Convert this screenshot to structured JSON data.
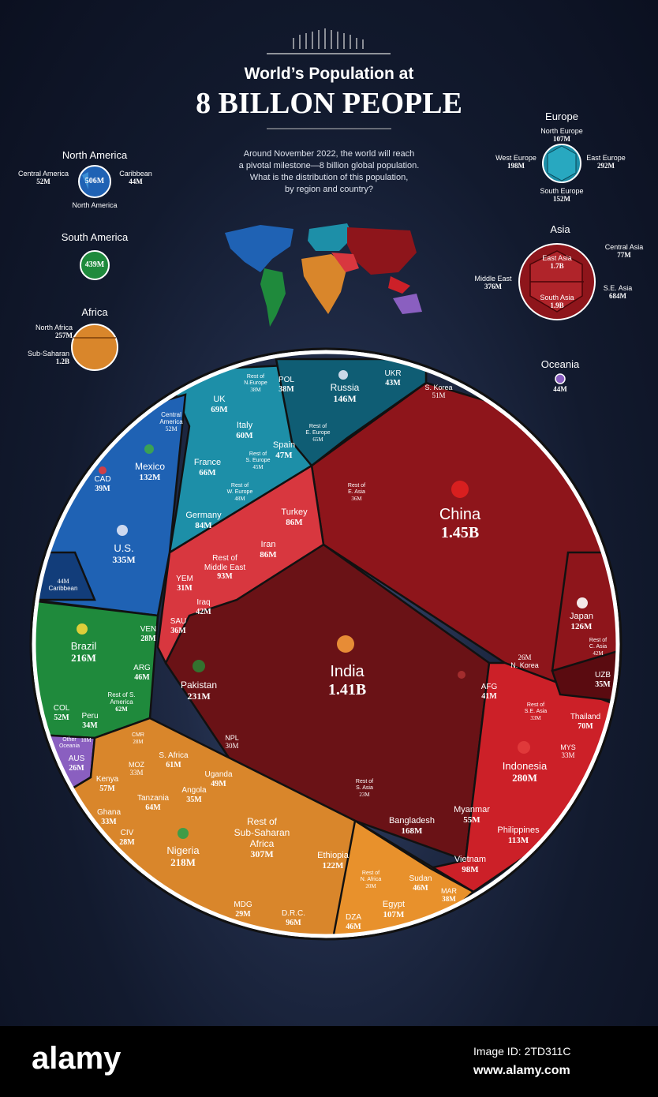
{
  "header": {
    "title_line1": "World’s Population at",
    "title_line2": "8 BILLON PEOPLE",
    "intro_line1": "Around November 2022, the world will reach",
    "intro_line2": "a pivotal milestone—8 billion global population.",
    "intro_line3": "What is the distribution of this population,",
    "intro_line4": "by region and country?"
  },
  "colors": {
    "north_america": "#1f62b4",
    "south_america": "#1f8a3c",
    "africa": "#d9862b",
    "europe": "#1d8fa8",
    "asia_dark": "#6a0f14",
    "asia": "#8e151b",
    "middle_east": "#d8373f",
    "se_asia": "#cc2028",
    "oceania": "#8a5fc0"
  },
  "regions": {
    "north_america": {
      "title": "North America",
      "total": "506M",
      "central": "Central America",
      "central_val": "52M",
      "caribbean": "Caribbean",
      "caribbean_val": "44M",
      "na": "North America"
    },
    "south_america": {
      "title": "South America",
      "total": "439M"
    },
    "africa": {
      "title": "Africa",
      "north": "North Africa",
      "north_val": "257M",
      "sub": "Sub-Saharan",
      "sub_val": "1.2B"
    },
    "europe": {
      "title": "Europe",
      "north": "North Europe",
      "north_val": "107M",
      "west": "West Europe",
      "west_val": "198M",
      "east": "East Europe",
      "east_val": "292M",
      "south": "South  Europe",
      "south_val": "152M"
    },
    "asia": {
      "title": "Asia",
      "east": "East Asia",
      "east_val": "1.7B",
      "central": "Central Asia",
      "central_val": "77M",
      "middle": "Middle East",
      "middle_val": "376M",
      "se": "S.E. Asia",
      "se_val": "684M",
      "south": "South Asia",
      "south_val": "1.9B"
    },
    "oceania": {
      "title": "Oceania",
      "total": "44M"
    }
  },
  "chart_data": {
    "type": "voronoi-treemap",
    "title": "World’s Population at 8 BILLON PEOPLE",
    "cells": [
      {
        "name": "China",
        "value": "1.45B"
      },
      {
        "name": "India",
        "value": "1.41B"
      },
      {
        "name": "U.S.",
        "value": "335M"
      },
      {
        "name": "Indonesia",
        "value": "280M"
      },
      {
        "name": "Pakistan",
        "value": "231M"
      },
      {
        "name": "Nigeria",
        "value": "218M"
      },
      {
        "name": "Brazil",
        "value": "216M"
      },
      {
        "name": "Bangladesh",
        "value": "168M"
      },
      {
        "name": "Russia",
        "value": "146M"
      },
      {
        "name": "Mexico",
        "value": "132M"
      },
      {
        "name": "Japan",
        "value": "126M"
      },
      {
        "name": "Ethiopia",
        "value": "122M"
      },
      {
        "name": "Philippines",
        "value": "113M"
      },
      {
        "name": "Egypt",
        "value": "107M"
      },
      {
        "name": "Vietnam",
        "value": "98M"
      },
      {
        "name": "D.R.C.",
        "value": "96M"
      },
      {
        "name": "Rest of Middle East",
        "value": "93M"
      },
      {
        "name": "Turkey",
        "value": "86M"
      },
      {
        "name": "Iran",
        "value": "86M"
      },
      {
        "name": "Germany",
        "value": "84M"
      },
      {
        "name": "Thailand",
        "value": "70M"
      },
      {
        "name": "UK",
        "value": "69M"
      },
      {
        "name": "France",
        "value": "66M"
      },
      {
        "name": "Rest of E. Europe",
        "value": "65M"
      },
      {
        "name": "Tanzania",
        "value": "64M"
      },
      {
        "name": "Rest of S. America",
        "value": "62M"
      },
      {
        "name": "S. Africa",
        "value": "61M"
      },
      {
        "name": "Italy",
        "value": "60M"
      },
      {
        "name": "Kenya",
        "value": "57M"
      },
      {
        "name": "Myanmar",
        "value": "55M"
      },
      {
        "name": "S. Korea",
        "value": "51M"
      },
      {
        "name": "COL",
        "value": "52M"
      },
      {
        "name": "Central America",
        "value": "52M"
      },
      {
        "name": "Uganda",
        "value": "49M"
      },
      {
        "name": "Rest of W. Europe",
        "value": "48M"
      },
      {
        "name": "Spain",
        "value": "47M"
      },
      {
        "name": "ARG",
        "value": "46M"
      },
      {
        "name": "Sudan",
        "value": "46M"
      },
      {
        "name": "DZA",
        "value": "46M"
      },
      {
        "name": "Rest of S. Europe",
        "value": "45M"
      },
      {
        "name": "Caribbean",
        "value": "44M"
      },
      {
        "name": "UKR",
        "value": "43M"
      },
      {
        "name": "Iraq",
        "value": "42M"
      },
      {
        "name": "Rest of C. Asia",
        "value": "42M"
      },
      {
        "name": "AFG",
        "value": "41M"
      },
      {
        "name": "CAD",
        "value": "39M"
      },
      {
        "name": "POL",
        "value": "38M"
      },
      {
        "name": "MAR",
        "value": "38M"
      },
      {
        "name": "Rest of N. Europe",
        "value": "38M"
      },
      {
        "name": "SAU",
        "value": "36M"
      },
      {
        "name": "UZB",
        "value": "35M"
      },
      {
        "name": "Angola",
        "value": "35M"
      },
      {
        "name": "Peru",
        "value": "34M"
      },
      {
        "name": "Rest of E. Asia",
        "value": "36M"
      },
      {
        "name": "MOZ",
        "value": "33M"
      },
      {
        "name": "Ghana",
        "value": "33M"
      },
      {
        "name": "Rest of S.E. Asia",
        "value": "33M"
      },
      {
        "name": "MYS",
        "value": "33M"
      },
      {
        "name": "YEM",
        "value": "31M"
      },
      {
        "name": "NPL",
        "value": "30M"
      },
      {
        "name": "MDG",
        "value": "29M"
      },
      {
        "name": "CMR",
        "value": "28M"
      },
      {
        "name": "CIV",
        "value": "28M"
      },
      {
        "name": "VEN",
        "value": "28M"
      },
      {
        "name": "N. Korea",
        "value": "26M"
      },
      {
        "name": "AUS",
        "value": "26M"
      },
      {
        "name": "Rest of S. Asia",
        "value": "23M"
      },
      {
        "name": "Rest of N. Africa",
        "value": "20M"
      },
      {
        "name": "Other Oceania",
        "value": "18M"
      },
      {
        "name": "Rest of Sub-Saharan Africa",
        "value": "307M"
      }
    ]
  },
  "labels": {
    "china": "China",
    "china_v": "1.45B",
    "india": "India",
    "india_v": "1.41B",
    "us": "U.S.",
    "us_v": "335M",
    "mexico": "Mexico",
    "mexico_v": "132M",
    "cad": "CAD",
    "cad_v": "39M",
    "central_am": "Central",
    "central_am2": "America",
    "central_am_v": "52M",
    "caribbean": "Caribbean",
    "caribbean_v": "44M",
    "uk": "UK",
    "uk_v": "69M",
    "rest_neu1": "Rest of",
    "rest_neu2": "N.Europe",
    "rest_neu_v": "38M",
    "pol": "POL",
    "pol_v": "38M",
    "russia": "Russia",
    "russia_v": "146M",
    "ukr": "UKR",
    "ukr_v": "43M",
    "skorea": "S. Korea",
    "skorea_v": "51M",
    "italy": "Italy",
    "italy_v": "60M",
    "spain": "Spain",
    "spain_v": "47M",
    "rest_eeu1": "Rest of",
    "rest_eeu2": "E. Europe",
    "rest_eeu_v": "65M",
    "rest_seu1": "Rest of",
    "rest_seu2": "S. Europe",
    "rest_seu_v": "45M",
    "france": "France",
    "france_v": "66M",
    "rest_weu1": "Rest of",
    "rest_weu2": "W. Europe",
    "rest_weu_v": "48M",
    "germany": "Germany",
    "germany_v": "84M",
    "rest_easia1": "Rest of",
    "rest_easia2": "E. Asia",
    "rest_easia_v": "36M",
    "turkey": "Turkey",
    "turkey_v": "86M",
    "iran": "Iran",
    "iran_v": "86M",
    "rest_me1": "Rest of",
    "rest_me2": "Middle East",
    "rest_me_v": "93M",
    "yem": "YEM",
    "yem_v": "31M",
    "iraq": "Iraq",
    "iraq_v": "42M",
    "sau": "SAU",
    "sau_v": "36M",
    "japan": "Japan",
    "japan_v": "126M",
    "rest_casia1": "Rest of",
    "rest_casia2": "C. Asia",
    "rest_casia_v": "42M",
    "nkorea": "N. Korea",
    "nkorea_v": "26M",
    "uzb": "UZB",
    "uzb_v": "35M",
    "afg": "AFG",
    "afg_v": "41M",
    "rest_seasia1": "Rest of",
    "rest_seasia2": "S.E. Asia",
    "rest_seasia_v": "33M",
    "thailand": "Thailand",
    "thailand_v": "70M",
    "mys": "MYS",
    "mys_v": "33M",
    "indonesia": "Indonesia",
    "indonesia_v": "280M",
    "myanmar": "Myanmar",
    "myanmar_v": "55M",
    "philippines": "Philippines",
    "philippines_v": "113M",
    "vietnam": "Vietnam",
    "vietnam_v": "98M",
    "bangladesh": "Bangladesh",
    "bangladesh_v": "168M",
    "rest_sasia1": "Rest of",
    "rest_sasia2": "S. Asia",
    "rest_sasia_v": "23M",
    "pakistan": "Pakistan",
    "pakistan_v": "231M",
    "npl": "NPL",
    "npl_v": "30M",
    "brazil": "Brazil",
    "brazil_v": "216M",
    "ven": "VEN",
    "ven_v": "28M",
    "arg": "ARG",
    "arg_v": "46M",
    "rest_sam1": "Rest of S.",
    "rest_sam2": "America",
    "rest_sam_v": "62M",
    "col": "COL",
    "col_v": "52M",
    "peru": "Peru",
    "peru_v": "34M",
    "other_oc1": "Other",
    "other_oc2": "Oceania",
    "other_oc_v": "18M",
    "aus": "AUS",
    "aus_v": "26M",
    "cmr": "CMR",
    "cmr_v": "28M",
    "moz": "MOZ",
    "moz_v": "33M",
    "safrica": "S. Africa",
    "safrica_v": "61M",
    "kenya": "Kenya",
    "kenya_v": "57M",
    "tanzania": "Tanzania",
    "tanzania_v": "64M",
    "uganda": "Uganda",
    "uganda_v": "49M",
    "angola": "Angola",
    "angola_v": "35M",
    "ghana": "Ghana",
    "ghana_v": "33M",
    "civ": "CIV",
    "civ_v": "28M",
    "nigeria": "Nigeria",
    "nigeria_v": "218M",
    "rest_ssa1": "Rest of",
    "rest_ssa2": "Sub-Saharan",
    "rest_ssa3": "Africa",
    "rest_ssa_v": "307M",
    "ethiopia": "Ethiopia",
    "ethiopia_v": "122M",
    "mdg": "MDG",
    "mdg_v": "29M",
    "drc": "D.R.C.",
    "drc_v": "96M",
    "rest_naf1": "Rest of",
    "rest_naf2": "N. Africa",
    "rest_naf_v": "20M",
    "sudan": "Sudan",
    "sudan_v": "46M",
    "egypt": "Egypt",
    "egypt_v": "107M",
    "mar": "MAR",
    "mar_v": "38M",
    "dza": "DZA",
    "dza_v": "46M"
  },
  "footer": {
    "brand": "alamy",
    "image_id": "Image ID: 2TD311C",
    "url": "www.alamy.com"
  }
}
